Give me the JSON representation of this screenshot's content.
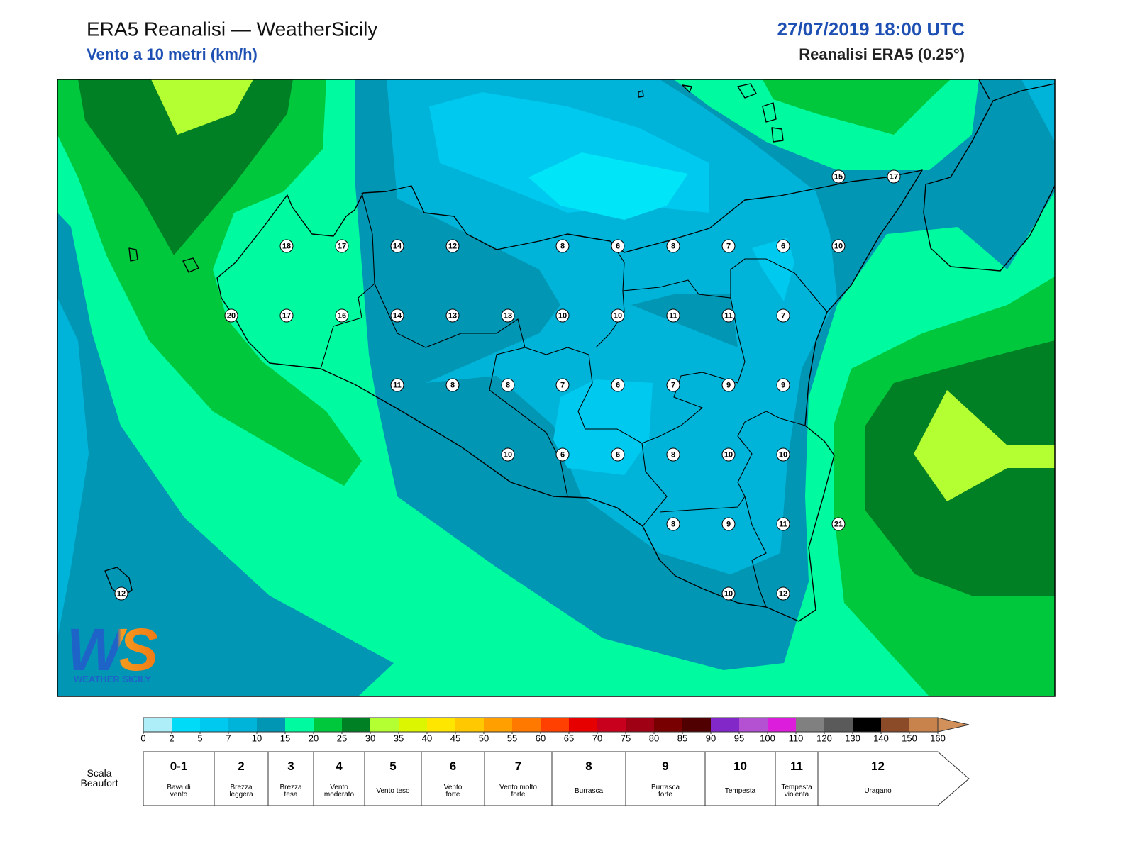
{
  "header": {
    "title": "ERA5 Reanalisi — WeatherSicily",
    "subtitle": "Vento a 10 metri (km/h)",
    "datetime": "27/07/2019 18:00 UTC",
    "source": "Reanalisi ERA5 (0.25°)"
  },
  "stations": [
    15,
    17,
    18,
    17,
    14,
    12,
    8,
    6,
    8,
    7,
    6,
    10,
    20,
    17,
    16,
    14,
    13,
    13,
    10,
    10,
    11,
    11,
    7,
    11,
    8,
    8,
    7,
    6,
    7,
    9,
    9,
    10,
    6,
    6,
    8,
    10,
    10,
    8,
    9,
    11,
    21,
    12,
    10,
    12
  ],
  "logo": {
    "mark": "WS",
    "text": "Weather Sicily"
  },
  "colorbar": {
    "ticks": [
      0,
      2,
      5,
      7,
      10,
      15,
      20,
      25,
      30,
      35,
      40,
      45,
      50,
      55,
      60,
      65,
      70,
      75,
      80,
      85,
      90,
      95,
      100,
      110,
      120,
      130,
      140,
      150,
      160
    ],
    "colors": [
      "#aeeef8",
      "#00dcf8",
      "#00c9ef",
      "#00b4d9",
      "#0096b4",
      "#00fa9f",
      "#00c83c",
      "#008024",
      "#b4ff32",
      "#dcf500",
      "#ffe600",
      "#ffc800",
      "#ffa000",
      "#ff7800",
      "#ff4000",
      "#e60000",
      "#c8001e",
      "#a00014",
      "#780000",
      "#500000",
      "#8228c8",
      "#b450d2",
      "#dc1edc",
      "#808080",
      "#5a5a5a",
      "#000000",
      "#8b4a28",
      "#c8824b"
    ],
    "extend_color": "#d2915a"
  },
  "beaufort": {
    "label": "Scala Beaufort",
    "classes": [
      {
        "force": "0-1",
        "name": "Bava di vento"
      },
      {
        "force": 2,
        "name": "Brezza leggera"
      },
      {
        "force": 3,
        "name": "Brezza tesa"
      },
      {
        "force": 4,
        "name": "Vento moderato"
      },
      {
        "force": 5,
        "name": "Vento teso"
      },
      {
        "force": 6,
        "name": "Vento forte"
      },
      {
        "force": 7,
        "name": "Vento molto forte"
      },
      {
        "force": 8,
        "name": "Burrasca"
      },
      {
        "force": 9,
        "name": "Burrasca forte"
      },
      {
        "force": 10,
        "name": "Tempesta"
      },
      {
        "force": 11,
        "name": "Tempesta violenta"
      },
      {
        "force": 12,
        "name": "Uragano"
      }
    ]
  }
}
